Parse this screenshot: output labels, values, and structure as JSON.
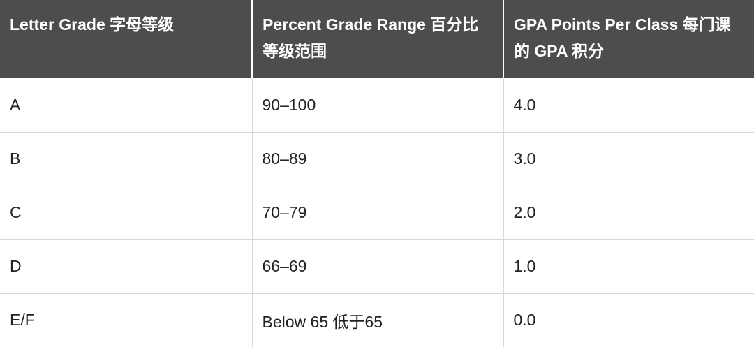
{
  "table": {
    "headers": [
      "Letter Grade  字母等级",
      "Percent Grade Range  百分比等级范围",
      "GPA Points Per Class  每门课的 GPA 积分"
    ],
    "rows": [
      [
        "A",
        "90–100",
        "4.0"
      ],
      [
        "B",
        "80–89",
        "3.0"
      ],
      [
        "C",
        "70–79",
        "2.0"
      ],
      [
        "D",
        "66–69",
        "1.0"
      ],
      [
        "E/F",
        "Below 65  低于65",
        "0.0"
      ]
    ]
  }
}
